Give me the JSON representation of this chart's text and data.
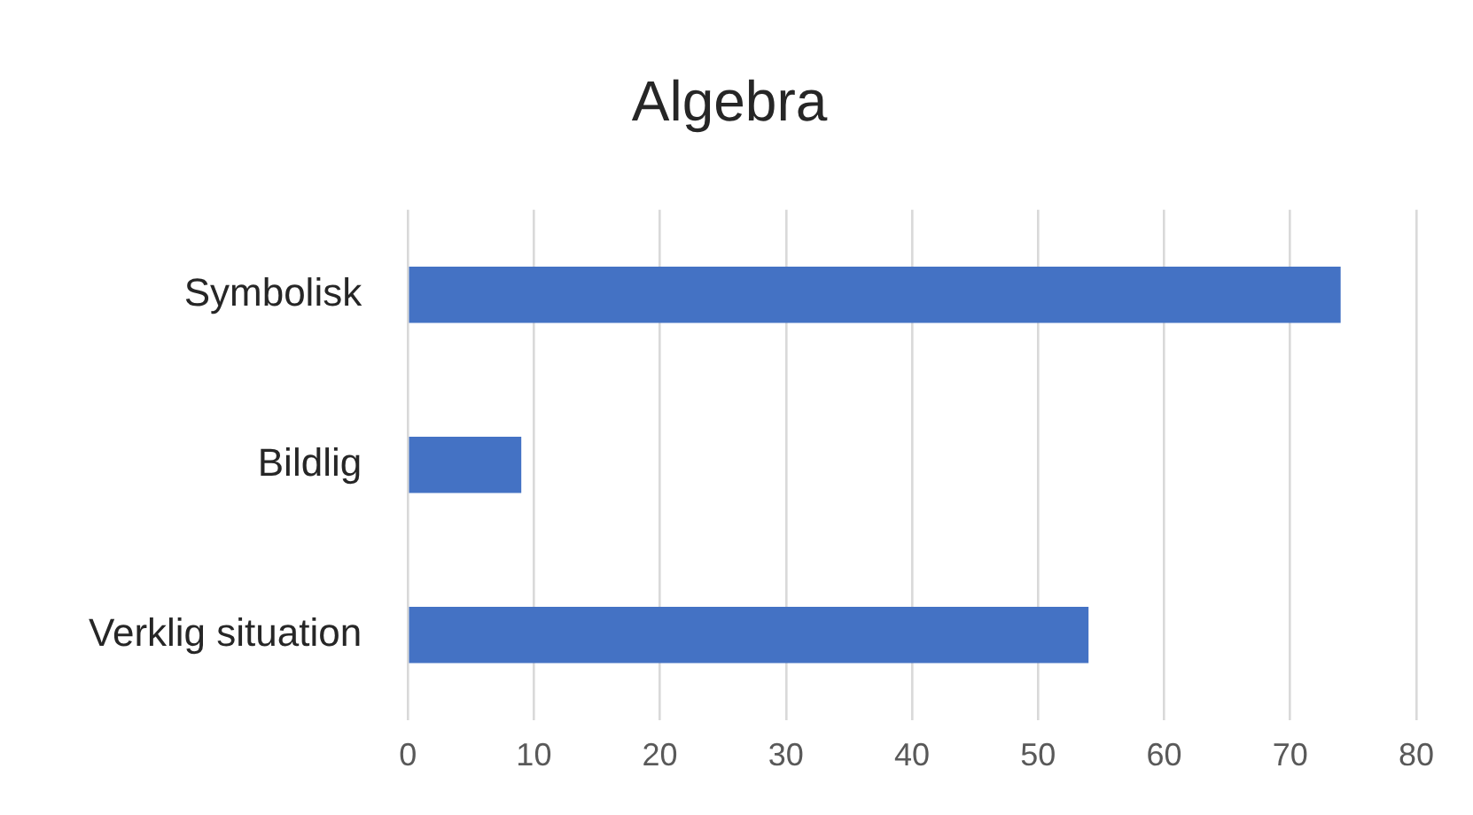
{
  "chart_data": {
    "type": "bar",
    "orientation": "horizontal",
    "title": "Algebra",
    "categories": [
      "Symbolisk",
      "Bildlig",
      "Verklig situation"
    ],
    "values": [
      74,
      9,
      54
    ],
    "color": "#4472c4",
    "xlim": [
      0,
      80
    ],
    "xticks": [
      0,
      10,
      20,
      30,
      40,
      50,
      60,
      70,
      80
    ],
    "grid": "x",
    "legend": false
  }
}
